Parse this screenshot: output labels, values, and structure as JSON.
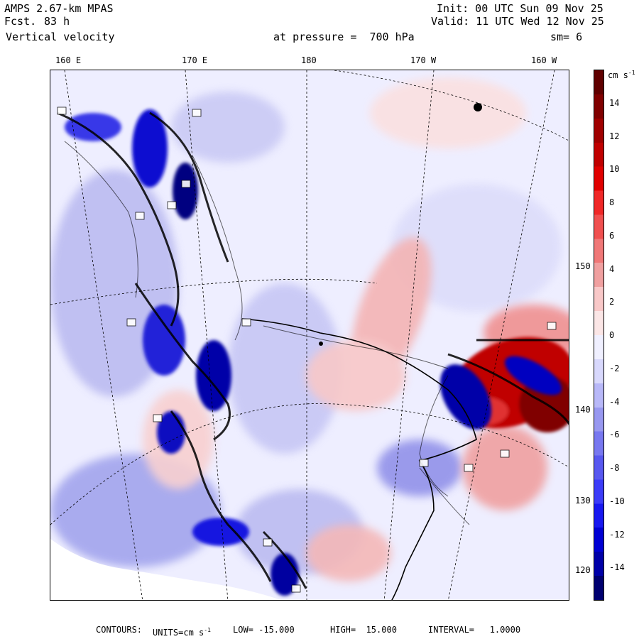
{
  "header": {
    "model": "AMPS 2.67-km MPAS",
    "forecast_label": "Fcst.",
    "forecast_hours": "83 h",
    "field": "Vertical velocity",
    "init": "Init: 00 UTC Sun 09 Nov 25",
    "valid": "Valid: 11 UTC Wed 12 Nov 25",
    "pressure": "at pressure =  700 hPa",
    "smoothing": "sm= 6"
  },
  "longitude_labels": [
    "160 E",
    "170 E",
    "180",
    "170 W",
    "160 W"
  ],
  "latitude_labels": [
    "150 W",
    "140 W",
    "130 W",
    "120 W"
  ],
  "colorbar": {
    "units_label": "cm s",
    "units_exponent": "-1",
    "ticks": [
      "14",
      "12",
      "10",
      "8",
      "6",
      "4",
      "2",
      "0",
      "-2",
      "-4",
      "-6",
      "-8",
      "-10",
      "-12",
      "-14"
    ],
    "colors": [
      "#000070",
      "#0000a8",
      "#0000d4",
      "#1818f0",
      "#3c3cf8",
      "#5858f0",
      "#7878f0",
      "#9898f0",
      "#b8b8f8",
      "#d8d8fc",
      "#f0f0ff",
      "#fbe6e6",
      "#f8c8c8",
      "#f0a0a0",
      "#f07878",
      "#f05050",
      "#f02828",
      "#e00000",
      "#c00000",
      "#a00000",
      "#800000",
      "#600000"
    ]
  },
  "footer": {
    "contours_label": "CONTOURS:",
    "units": "UNITS=cm s",
    "units_exp": "-1",
    "low": "LOW= -15.000",
    "high": "HIGH=  15.000",
    "interval": "INTERVAL=   1.0000"
  }
}
